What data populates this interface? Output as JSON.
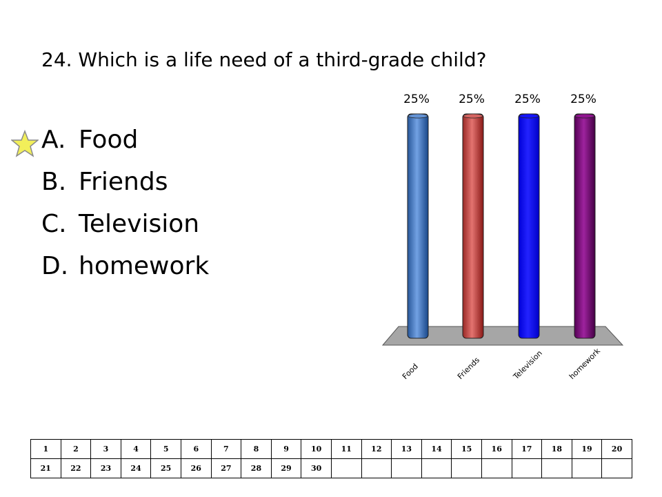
{
  "question": {
    "text": "24. Which is a life need of a third-grade child?"
  },
  "answers": [
    {
      "letter": "A.",
      "text": "Food"
    },
    {
      "letter": "B.",
      "text": "Friends"
    },
    {
      "letter": "C.",
      "text": "Television"
    },
    {
      "letter": "D.",
      "text": "homework"
    }
  ],
  "correct_marker": {
    "icon": "star-icon",
    "answer": "A."
  },
  "chart_data": {
    "type": "bar",
    "categories": [
      "Food",
      "Friends",
      "Television",
      "homework"
    ],
    "values": [
      25,
      25,
      25,
      25
    ],
    "value_labels": [
      "25%",
      "25%",
      "25%",
      "25%"
    ],
    "colors": [
      "#4f7ec0",
      "#c0504d",
      "#0000ff",
      "#7b007b"
    ],
    "ylim": [
      0,
      25
    ],
    "grid": false,
    "legend": "none",
    "title": "",
    "xlabel": "",
    "ylabel": ""
  },
  "response_grid": {
    "rows": [
      [
        "1",
        "2",
        "3",
        "4",
        "5",
        "6",
        "7",
        "8",
        "9",
        "10",
        "11",
        "12",
        "13",
        "14",
        "15",
        "16",
        "17",
        "18",
        "19",
        "20"
      ],
      [
        "21",
        "22",
        "23",
        "24",
        "25",
        "26",
        "27",
        "28",
        "29",
        "30",
        "",
        "",
        "",
        "",
        "",
        "",
        "",
        "",
        "",
        ""
      ]
    ]
  }
}
